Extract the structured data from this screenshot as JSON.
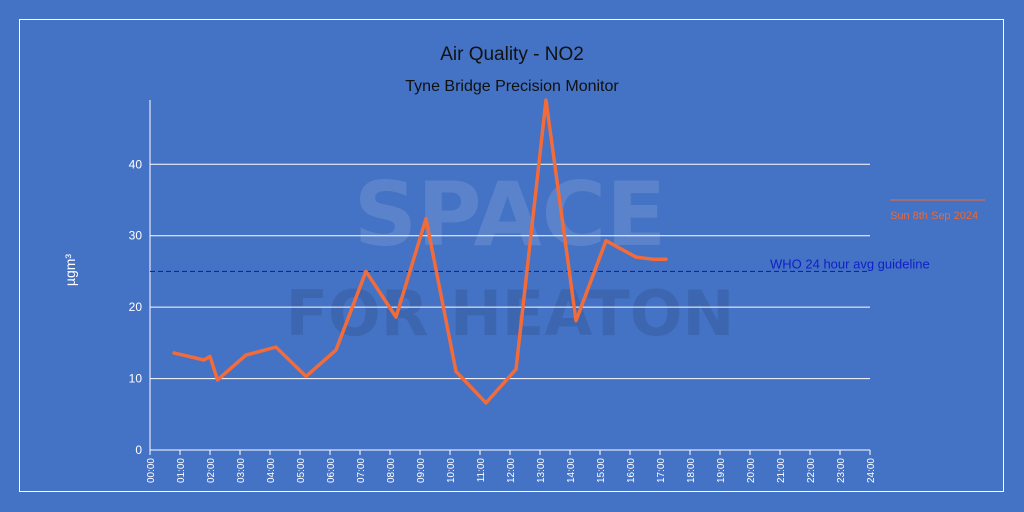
{
  "colors": {
    "background": "#4472c4",
    "series": "#f26b3a",
    "guideline": "#1020c8",
    "grid": "#ffffff"
  },
  "watermark": {
    "line1": "SPACE",
    "line2": "FOR HEATON"
  },
  "chart_data": {
    "type": "line",
    "title": "Air Quality - NO2",
    "subtitle": "Tyne Bridge Precision Monitor",
    "ylabel": "µgm³",
    "xlabel": "",
    "ylim": [
      0,
      49
    ],
    "yticks": [
      0,
      10,
      20,
      30,
      40
    ],
    "xlim": [
      0,
      24
    ],
    "xtick_labels": [
      "00:00",
      "01:00",
      "02:00",
      "03:00",
      "04:00",
      "05:00",
      "06:00",
      "07:00",
      "08:00",
      "09:00",
      "10:00",
      "11:00",
      "12:00",
      "13:00",
      "14:00",
      "15:00",
      "16:00",
      "17:00",
      "18:00",
      "19:00",
      "20:00",
      "21:00",
      "22:00",
      "23:00",
      "24:00"
    ],
    "grid": true,
    "legend_position": "right",
    "series": [
      {
        "name": "Sun 8th Sep 2024",
        "x": [
          0.8,
          1.8,
          2.0,
          2.25,
          3.2,
          4.2,
          5.2,
          6.2,
          7.2,
          8.2,
          9.2,
          10.2,
          11.2,
          12.2,
          13.2,
          14.2,
          15.2,
          16.2,
          16.8,
          17.2
        ],
        "y": [
          13.6,
          12.6,
          13.1,
          9.8,
          13.3,
          14.4,
          10.3,
          14.0,
          25.0,
          18.6,
          32.4,
          11.0,
          6.6,
          11.3,
          49.0,
          18.1,
          29.3,
          27.0,
          26.7,
          26.7
        ]
      }
    ],
    "reference_lines": [
      {
        "label": "WHO 24 hour avg guideline",
        "y": 25
      }
    ]
  }
}
